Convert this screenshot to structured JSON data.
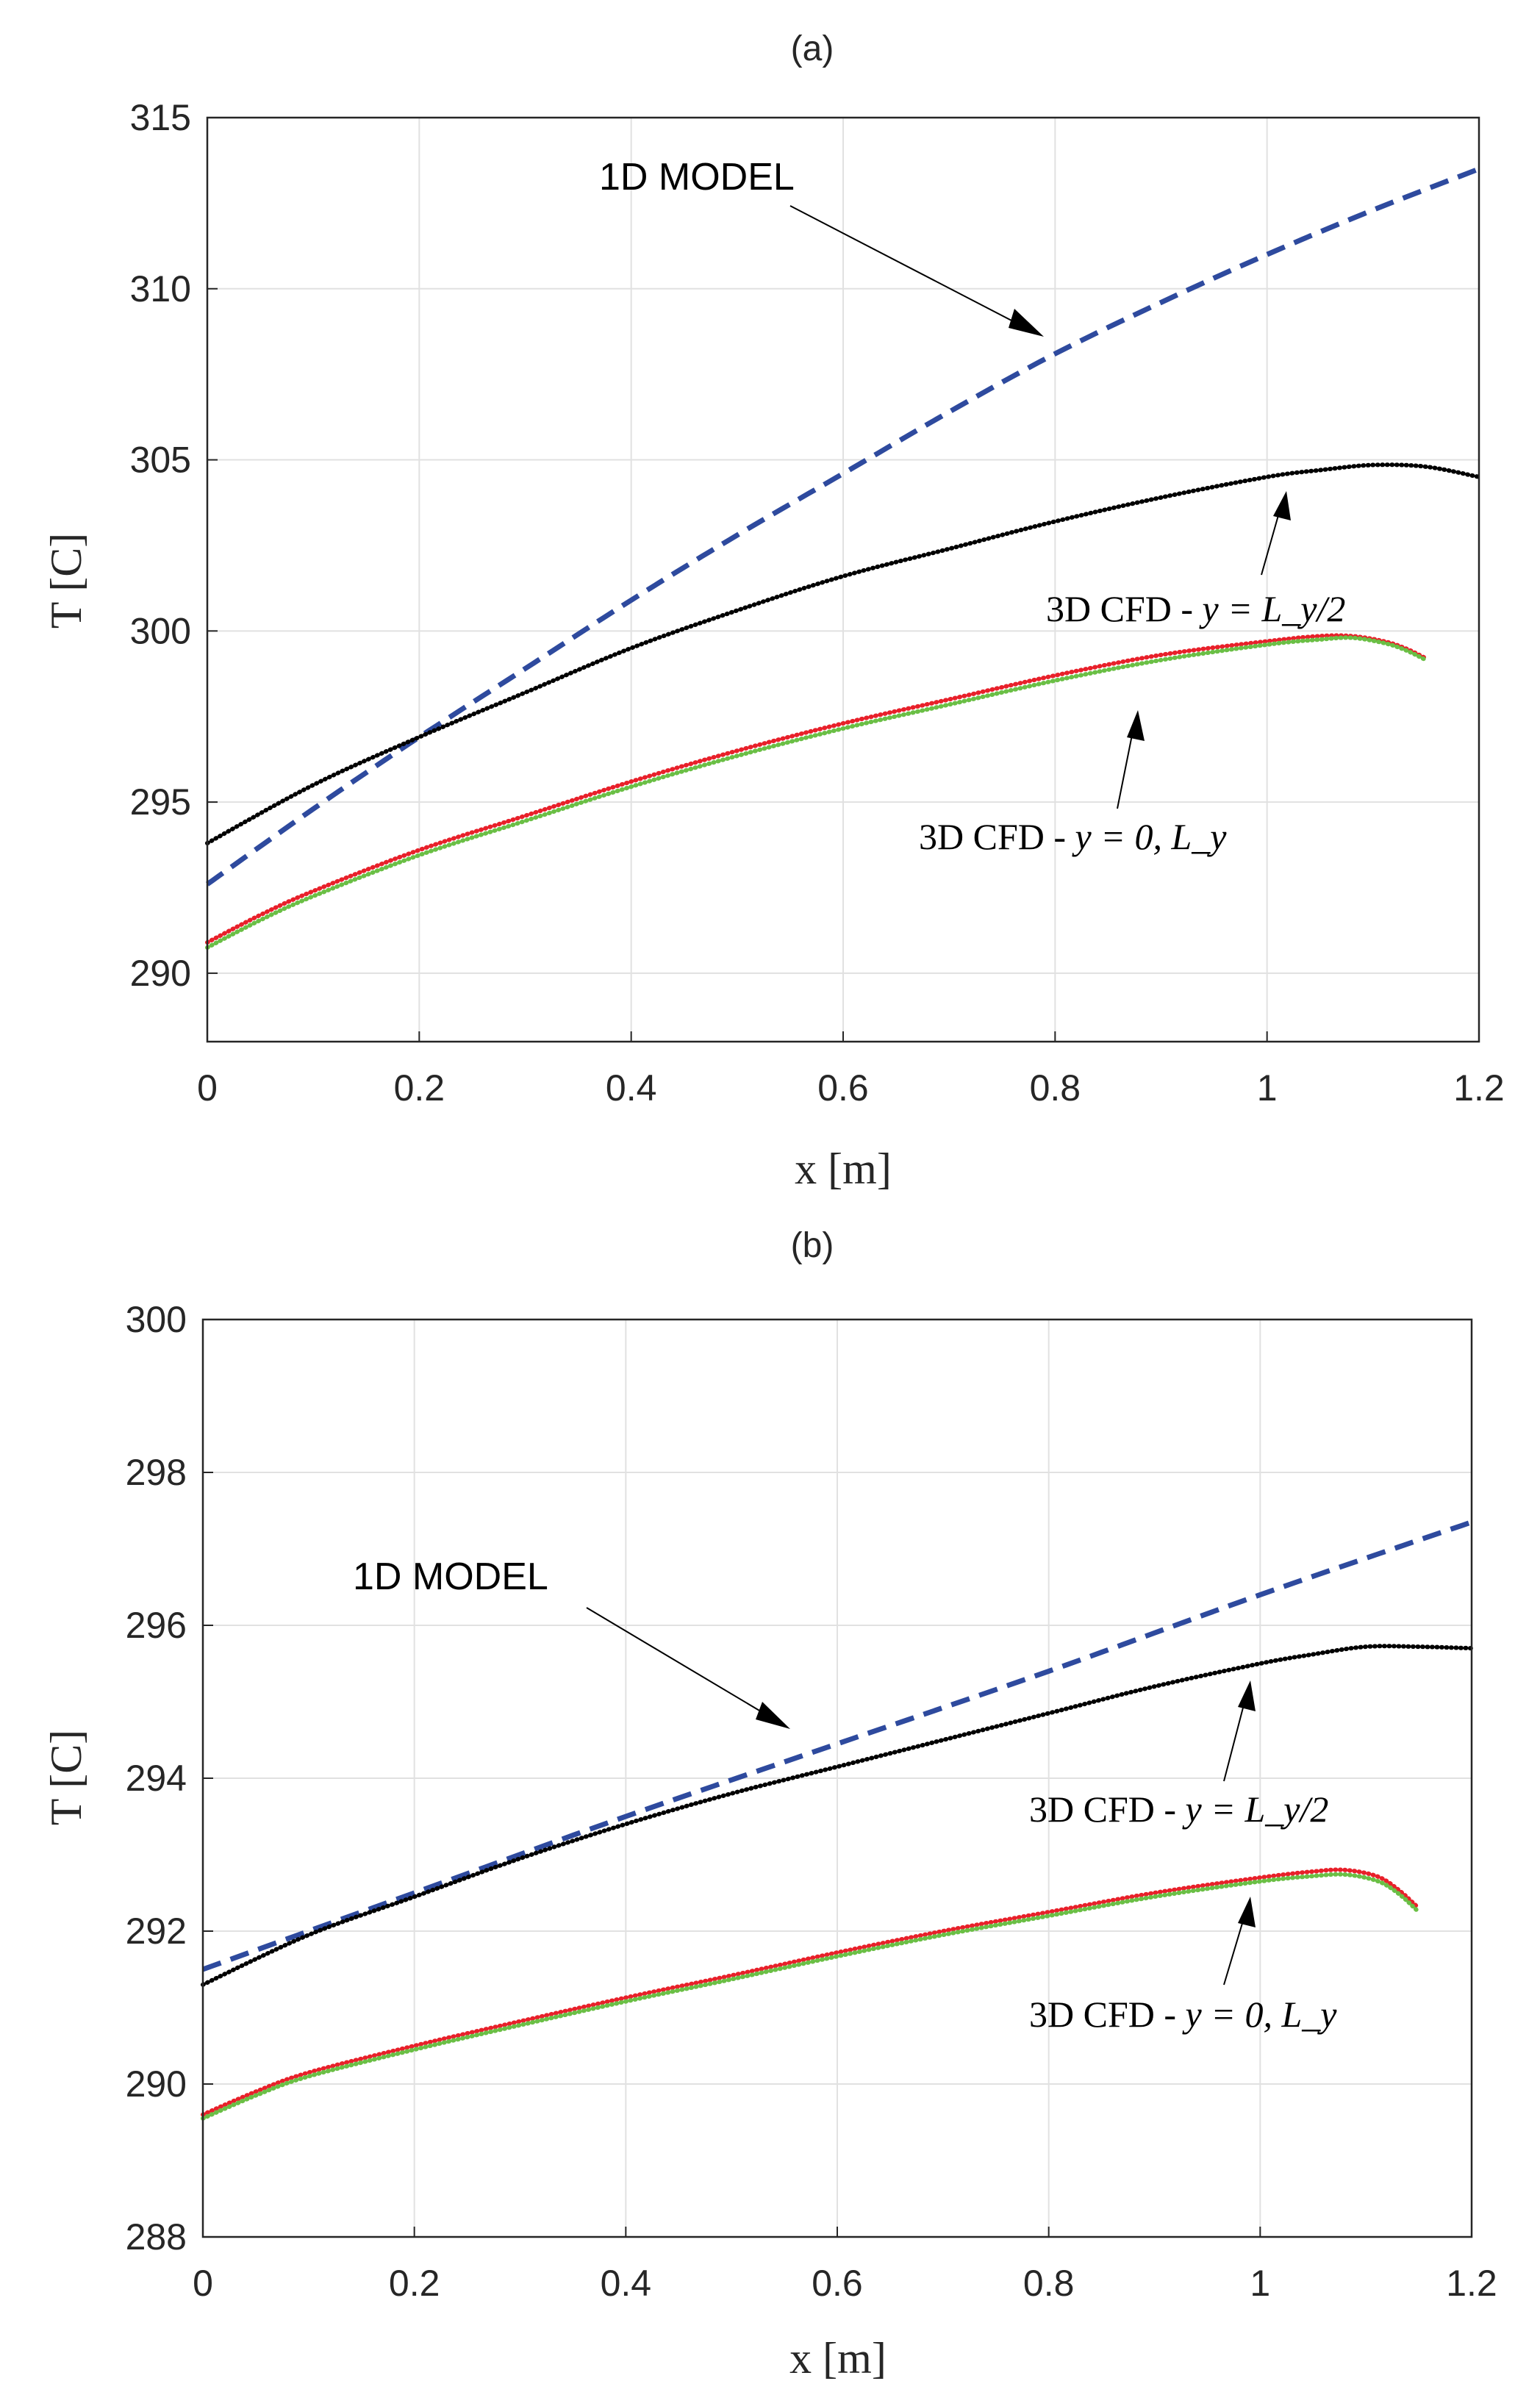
{
  "chart_data": [
    {
      "type": "line",
      "title": "(a)",
      "xlabel": "x [m]",
      "ylabel": "T [C]",
      "xlim": [
        0,
        1.2
      ],
      "ylim": [
        288,
        315
      ],
      "xticks": [
        0,
        0.2,
        0.4,
        0.6,
        0.8,
        1,
        1.2
      ],
      "xtick_labels": [
        "0",
        "0.2",
        "0.4",
        "0.6",
        "0.8",
        "1",
        "1.2"
      ],
      "yticks": [
        290,
        295,
        300,
        305,
        310,
        315
      ],
      "ytick_labels": [
        "290",
        "295",
        "300",
        "305",
        "310",
        "315"
      ],
      "grid": true,
      "series": [
        {
          "name": "1D MODEL",
          "style": "dashed",
          "color": "#2e4a9e",
          "x": [
            0,
            0.1,
            0.2,
            0.3,
            0.4,
            0.5,
            0.6,
            0.7,
            0.8,
            0.9,
            1.0,
            1.1,
            1.2
          ],
          "y": [
            292.6,
            294.8,
            296.9,
            298.9,
            300.9,
            302.8,
            304.6,
            306.4,
            308.1,
            309.6,
            311.0,
            312.3,
            313.5
          ]
        },
        {
          "name": "3D CFD - y = Ly/2",
          "style": "dotted",
          "color": "#000000",
          "x": [
            0,
            0.1,
            0.2,
            0.3,
            0.4,
            0.5,
            0.6,
            0.7,
            0.8,
            0.9,
            1.0,
            1.05,
            1.1,
            1.15,
            1.2
          ],
          "y": [
            293.8,
            295.5,
            296.9,
            298.2,
            299.5,
            300.6,
            301.6,
            302.4,
            303.2,
            303.9,
            304.5,
            304.7,
            304.85,
            304.8,
            304.5
          ]
        },
        {
          "name": "3D CFD - y = 0 (red)",
          "style": "dotted",
          "color": "#e8202a",
          "x": [
            0,
            0.05,
            0.1,
            0.2,
            0.3,
            0.4,
            0.5,
            0.6,
            0.7,
            0.8,
            0.9,
            1.0,
            1.05,
            1.08,
            1.11,
            1.13,
            1.15
          ],
          "y": [
            290.9,
            291.7,
            292.4,
            293.6,
            294.6,
            295.6,
            296.5,
            297.3,
            298.0,
            298.7,
            299.3,
            299.7,
            299.85,
            299.85,
            299.7,
            299.5,
            299.2
          ]
        },
        {
          "name": "3D CFD - y = Ly (green)",
          "style": "dotted",
          "color": "#6abf45",
          "x": [
            0,
            0.05,
            0.1,
            0.2,
            0.3,
            0.4,
            0.5,
            0.6,
            0.7,
            0.8,
            0.9,
            1.0,
            1.05,
            1.08,
            1.11,
            1.13,
            1.15
          ],
          "y": [
            290.75,
            291.55,
            292.25,
            293.45,
            294.45,
            295.45,
            296.35,
            297.15,
            297.85,
            298.55,
            299.15,
            299.6,
            299.75,
            299.8,
            299.65,
            299.45,
            299.15
          ]
        }
      ],
      "annotations": [
        {
          "text": "1D MODEL",
          "type": "plain"
        },
        {
          "text": "3D CFD - ",
          "math": "y = L_y/2",
          "type": "math"
        },
        {
          "text": "3D CFD - ",
          "math": "y = 0, L_y",
          "type": "math"
        }
      ]
    },
    {
      "type": "line",
      "title": "(b)",
      "xlabel": "x [m]",
      "ylabel": "T [C]",
      "xlim": [
        0,
        1.2
      ],
      "ylim": [
        288,
        300
      ],
      "xticks": [
        0,
        0.2,
        0.4,
        0.6,
        0.8,
        1,
        1.2
      ],
      "xtick_labels": [
        "0",
        "0.2",
        "0.4",
        "0.6",
        "0.8",
        "1",
        "1.2"
      ],
      "yticks": [
        288,
        290,
        292,
        294,
        296,
        298,
        300
      ],
      "ytick_labels": [
        "288",
        "290",
        "292",
        "294",
        "296",
        "298",
        "300"
      ],
      "grid": true,
      "series": [
        {
          "name": "1D MODEL",
          "style": "dashed",
          "color": "#2e4a9e",
          "x": [
            0,
            0.2,
            0.4,
            0.6,
            0.8,
            1.0,
            1.2
          ],
          "y": [
            291.5,
            292.5,
            293.5,
            294.45,
            295.4,
            296.4,
            297.35
          ]
        },
        {
          "name": "3D CFD - y = Ly/2",
          "style": "dotted",
          "color": "#000000",
          "x": [
            0,
            0.1,
            0.2,
            0.3,
            0.4,
            0.5,
            0.6,
            0.7,
            0.8,
            0.9,
            1.0,
            1.05,
            1.1,
            1.15,
            1.2
          ],
          "y": [
            291.3,
            291.95,
            292.45,
            292.95,
            293.4,
            293.8,
            294.15,
            294.5,
            294.85,
            295.2,
            295.5,
            295.62,
            295.72,
            295.72,
            295.7
          ]
        },
        {
          "name": "3D CFD - y = 0 (red)",
          "style": "dotted",
          "color": "#e8202a",
          "x": [
            0,
            0.05,
            0.1,
            0.2,
            0.3,
            0.4,
            0.5,
            0.6,
            0.7,
            0.8,
            0.9,
            1.0,
            1.05,
            1.08,
            1.11,
            1.13,
            1.15
          ],
          "y": [
            289.6,
            289.9,
            290.15,
            290.5,
            290.82,
            291.13,
            291.42,
            291.72,
            292.0,
            292.25,
            292.5,
            292.7,
            292.78,
            292.8,
            292.72,
            292.55,
            292.3
          ]
        },
        {
          "name": "3D CFD - y = Ly (green)",
          "style": "dotted",
          "color": "#6abf45",
          "x": [
            0,
            0.05,
            0.1,
            0.2,
            0.3,
            0.4,
            0.5,
            0.6,
            0.7,
            0.8,
            0.9,
            1.0,
            1.05,
            1.08,
            1.11,
            1.13,
            1.15
          ],
          "y": [
            289.55,
            289.85,
            290.1,
            290.45,
            290.77,
            291.08,
            291.37,
            291.67,
            291.95,
            292.2,
            292.45,
            292.65,
            292.72,
            292.74,
            292.66,
            292.5,
            292.25
          ]
        }
      ],
      "annotations": [
        {
          "text": "1D MODEL",
          "type": "plain"
        },
        {
          "text": "3D CFD - ",
          "math": "y = L_y/2",
          "type": "math"
        },
        {
          "text": "3D CFD - ",
          "math": "y = 0, L_y",
          "type": "math"
        }
      ]
    }
  ]
}
